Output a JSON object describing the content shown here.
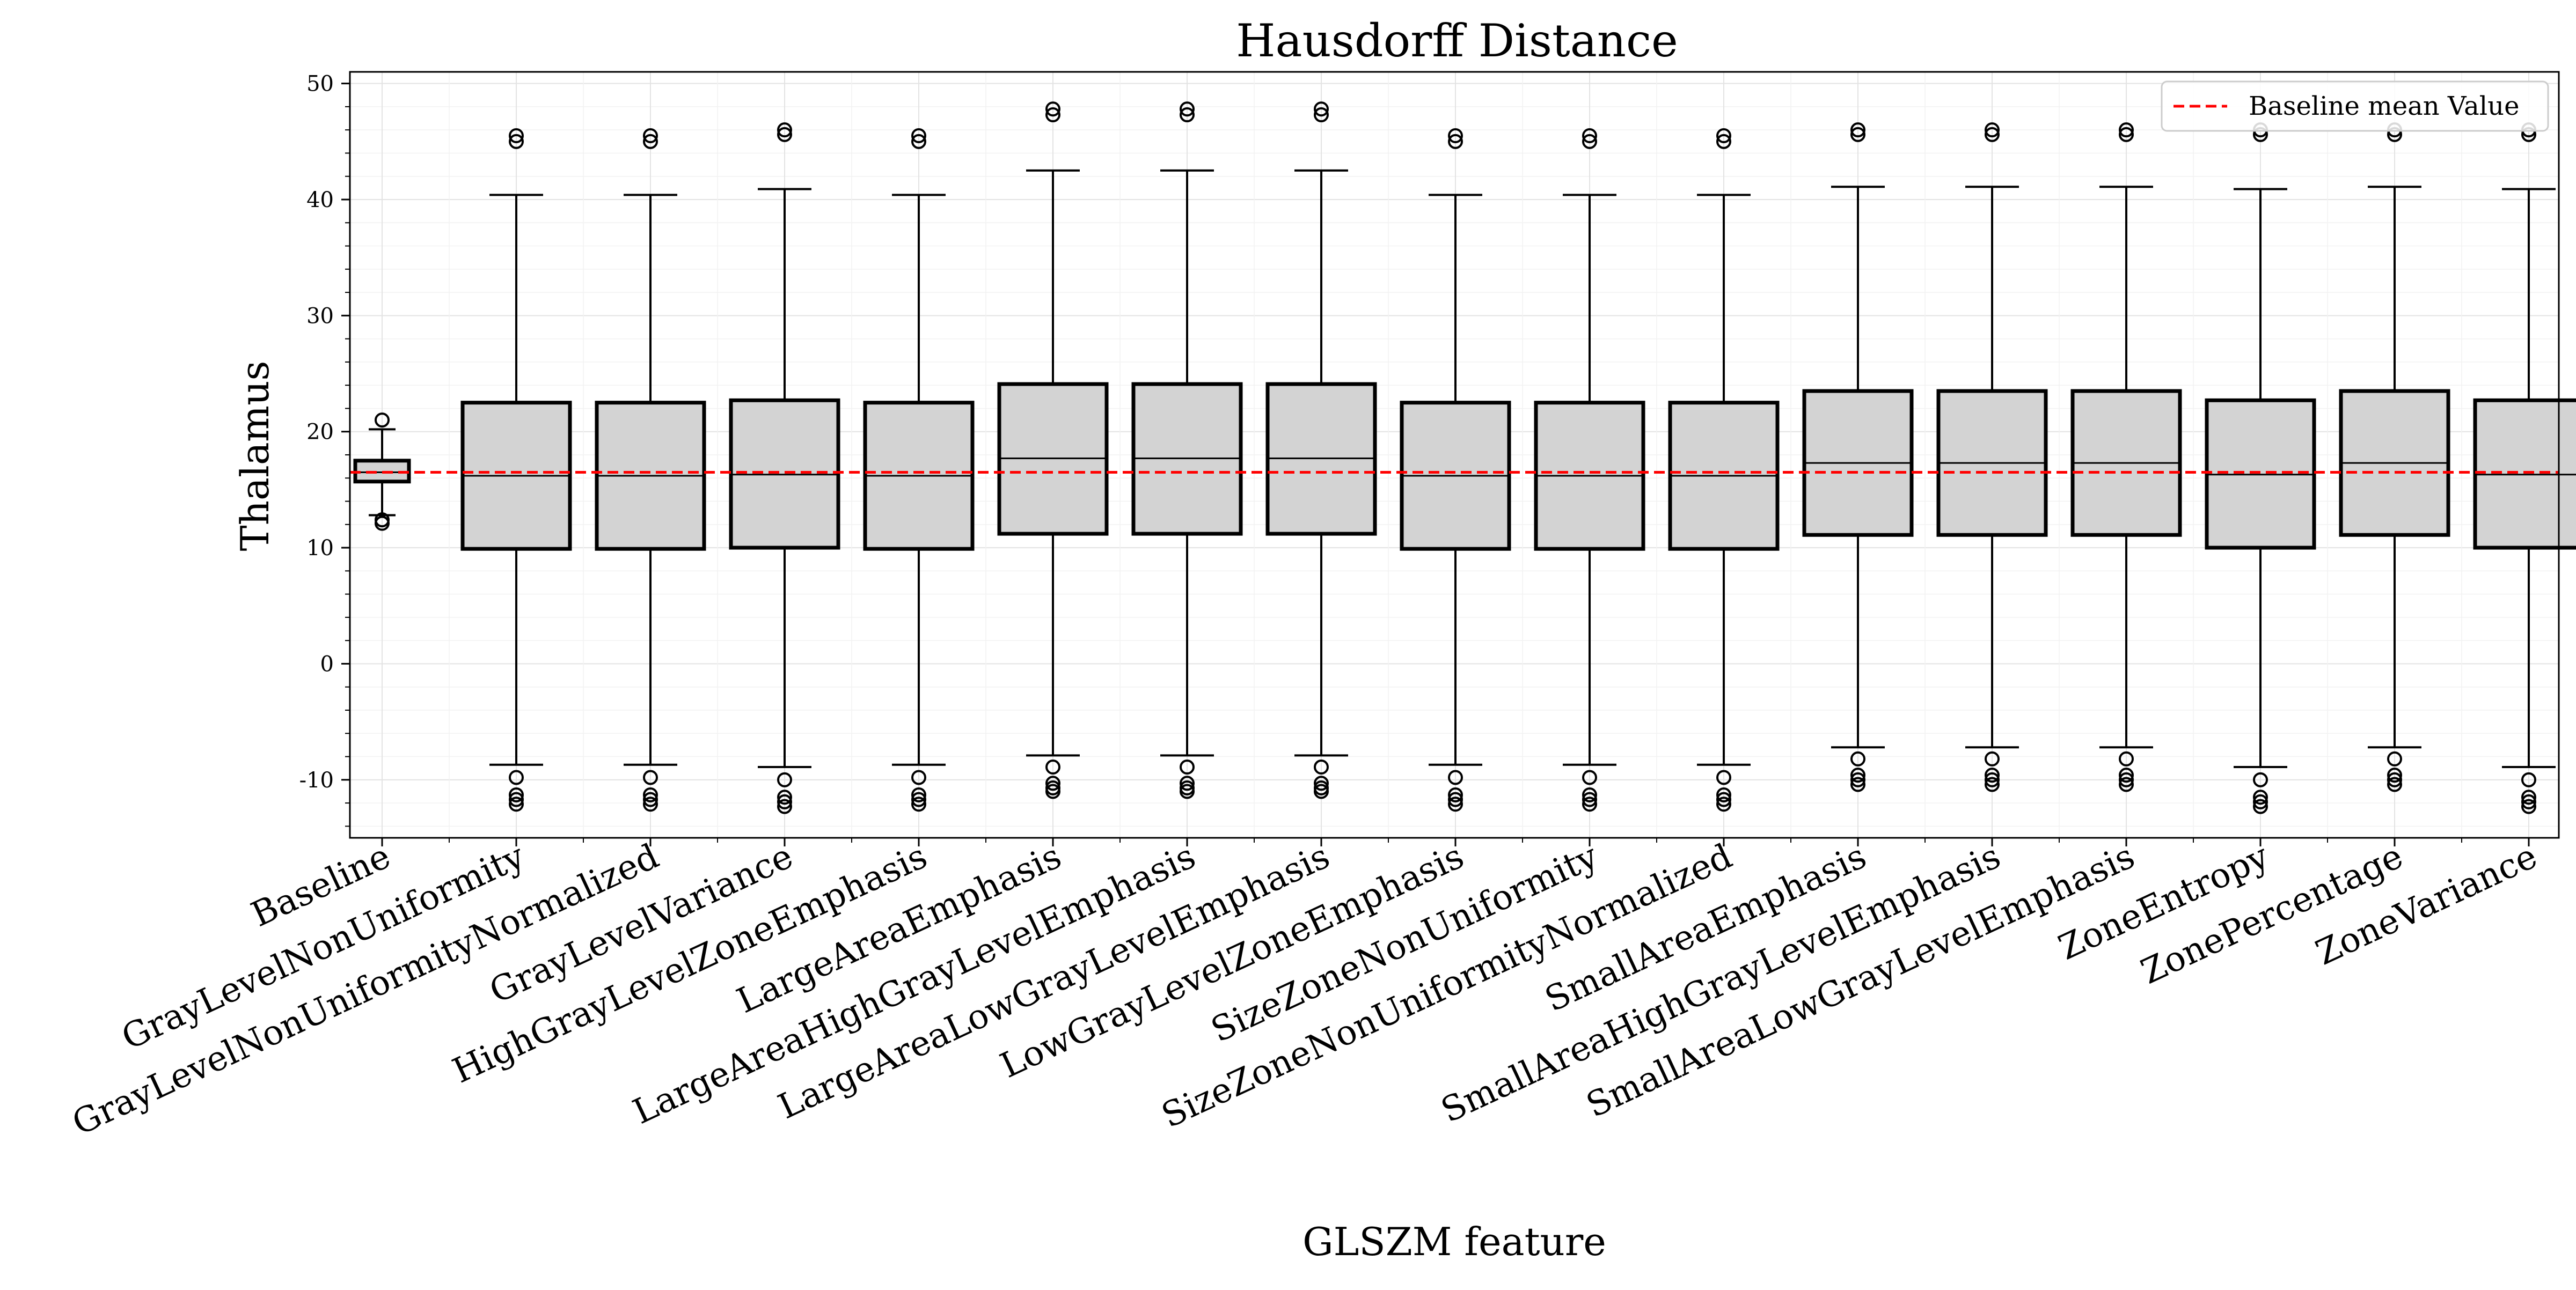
{
  "chart_data": {
    "type": "box",
    "title": "Hausdorff Distance",
    "xlabel": "GLSZM feature",
    "ylabel": "Thalamus",
    "ylim": [
      -15,
      51
    ],
    "yticks": [
      -10,
      0,
      10,
      20,
      30,
      40,
      50
    ],
    "grid": true,
    "legend": {
      "position": "top-right",
      "entries": [
        "Baseline mean Value"
      ]
    },
    "baseline_mean": 16.5,
    "colors": {
      "box_fill": "#d3d3d3",
      "box_edge": "#000000",
      "baseline_line": "#ff0000",
      "grid": "#e6e6e6"
    },
    "categories": [
      "Baseline",
      "GrayLevelNonUniformity",
      "GrayLevelNonUniformityNormalized",
      "GrayLevelVariance",
      "HighGrayLevelZoneEmphasis",
      "LargeAreaEmphasis",
      "LargeAreaHighGrayLevelEmphasis",
      "LargeAreaLowGrayLevelEmphasis",
      "LowGrayLevelZoneEmphasis",
      "SizeZoneNonUniformity",
      "SizeZoneNonUniformityNormalized",
      "SmallAreaEmphasis",
      "SmallAreaHighGrayLevelEmphasis",
      "SmallAreaLowGrayLevelEmphasis",
      "ZoneEntropy",
      "ZonePercentage",
      "ZoneVariance"
    ],
    "boxes": [
      {
        "whisker_low": 12.8,
        "q1": 15.7,
        "median": 16.5,
        "q3": 17.5,
        "whisker_high": 20.2,
        "outliers": [
          21.0,
          12.4,
          12.1
        ]
      },
      {
        "whisker_low": -8.7,
        "q1": 9.9,
        "median": 16.2,
        "q3": 22.5,
        "whisker_high": 40.4,
        "outliers": [
          45.5,
          45.0,
          -9.8,
          -11.3,
          -11.7,
          -12.1
        ]
      },
      {
        "whisker_low": -8.7,
        "q1": 9.9,
        "median": 16.2,
        "q3": 22.5,
        "whisker_high": 40.4,
        "outliers": [
          45.5,
          45.0,
          -9.8,
          -11.3,
          -11.7,
          -12.1
        ]
      },
      {
        "whisker_low": -8.9,
        "q1": 10.0,
        "median": 16.3,
        "q3": 22.7,
        "whisker_high": 40.9,
        "outliers": [
          46.0,
          45.6,
          -10.0,
          -11.5,
          -11.9,
          -12.3
        ]
      },
      {
        "whisker_low": -8.7,
        "q1": 9.9,
        "median": 16.2,
        "q3": 22.5,
        "whisker_high": 40.4,
        "outliers": [
          45.5,
          45.0,
          -9.8,
          -11.3,
          -11.7,
          -12.1
        ]
      },
      {
        "whisker_low": -7.9,
        "q1": 11.2,
        "median": 17.7,
        "q3": 24.1,
        "whisker_high": 42.5,
        "outliers": [
          47.8,
          47.3,
          -8.9,
          -10.3,
          -10.7,
          -11.0
        ]
      },
      {
        "whisker_low": -7.9,
        "q1": 11.2,
        "median": 17.7,
        "q3": 24.1,
        "whisker_high": 42.5,
        "outliers": [
          47.8,
          47.3,
          -8.9,
          -10.3,
          -10.7,
          -11.0
        ]
      },
      {
        "whisker_low": -7.9,
        "q1": 11.2,
        "median": 17.7,
        "q3": 24.1,
        "whisker_high": 42.5,
        "outliers": [
          47.8,
          47.3,
          -8.9,
          -10.3,
          -10.7,
          -11.0
        ]
      },
      {
        "whisker_low": -8.7,
        "q1": 9.9,
        "median": 16.2,
        "q3": 22.5,
        "whisker_high": 40.4,
        "outliers": [
          45.5,
          45.0,
          -9.8,
          -11.3,
          -11.7,
          -12.1
        ]
      },
      {
        "whisker_low": -8.7,
        "q1": 9.9,
        "median": 16.2,
        "q3": 22.5,
        "whisker_high": 40.4,
        "outliers": [
          45.5,
          45.0,
          -9.8,
          -11.3,
          -11.7,
          -12.1
        ]
      },
      {
        "whisker_low": -8.7,
        "q1": 9.9,
        "median": 16.2,
        "q3": 22.5,
        "whisker_high": 40.4,
        "outliers": [
          45.5,
          45.0,
          -9.8,
          -11.3,
          -11.7,
          -12.1
        ]
      },
      {
        "whisker_low": -7.2,
        "q1": 11.1,
        "median": 17.3,
        "q3": 23.5,
        "whisker_high": 41.1,
        "outliers": [
          46.0,
          45.6,
          -8.2,
          -9.6,
          -10.0,
          -10.4
        ]
      },
      {
        "whisker_low": -7.2,
        "q1": 11.1,
        "median": 17.3,
        "q3": 23.5,
        "whisker_high": 41.1,
        "outliers": [
          46.0,
          45.6,
          -8.2,
          -9.6,
          -10.0,
          -10.4
        ]
      },
      {
        "whisker_low": -7.2,
        "q1": 11.1,
        "median": 17.3,
        "q3": 23.5,
        "whisker_high": 41.1,
        "outliers": [
          46.0,
          45.6,
          -8.2,
          -9.6,
          -10.0,
          -10.4
        ]
      },
      {
        "whisker_low": -8.9,
        "q1": 10.0,
        "median": 16.3,
        "q3": 22.7,
        "whisker_high": 40.9,
        "outliers": [
          46.0,
          45.6,
          -10.0,
          -11.5,
          -11.9,
          -12.3
        ]
      },
      {
        "whisker_low": -7.2,
        "q1": 11.1,
        "median": 17.3,
        "q3": 23.5,
        "whisker_high": 41.1,
        "outliers": [
          46.0,
          45.6,
          -8.2,
          -9.6,
          -10.0,
          -10.4
        ]
      },
      {
        "whisker_low": -8.9,
        "q1": 10.0,
        "median": 16.3,
        "q3": 22.7,
        "whisker_high": 40.9,
        "outliers": [
          46.0,
          45.6,
          -10.0,
          -11.5,
          -11.9,
          -12.3
        ]
      }
    ]
  }
}
